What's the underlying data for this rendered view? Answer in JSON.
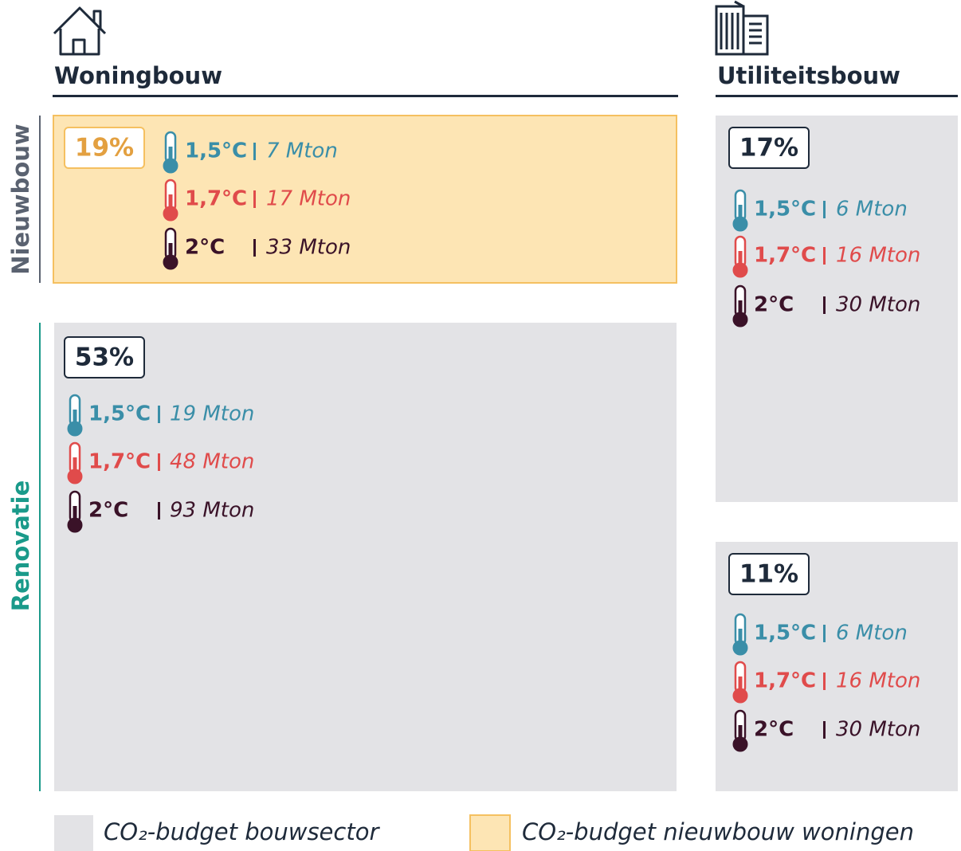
{
  "sections": {
    "housing": "Woningbouw",
    "utility": "Utiliteitsbouw"
  },
  "rows": {
    "new": "Nieuwbouw",
    "renovation": "Renovatie"
  },
  "boxes": [
    {
      "share": "19%",
      "scenarios": [
        {
          "temp": "1,5°C",
          "budget": "7 Mton"
        },
        {
          "temp": "1,7°C",
          "budget": "17 Mton"
        },
        {
          "temp": "2°C",
          "budget": "33 Mton"
        }
      ]
    },
    {
      "share": "53%",
      "scenarios": [
        {
          "temp": "1,5°C",
          "budget": "19 Mton"
        },
        {
          "temp": "1,7°C",
          "budget": "48 Mton"
        },
        {
          "temp": "2°C",
          "budget": "93 Mton"
        }
      ]
    },
    {
      "share": "17%",
      "scenarios": [
        {
          "temp": "1,5°C",
          "budget": "6 Mton"
        },
        {
          "temp": "1,7°C",
          "budget": "16 Mton"
        },
        {
          "temp": "2°C",
          "budget": "30 Mton"
        }
      ]
    },
    {
      "share": "11%",
      "scenarios": [
        {
          "temp": "1,5°C",
          "budget": "6 Mton"
        },
        {
          "temp": "1,7°C",
          "budget": "16 Mton"
        },
        {
          "temp": "2°C",
          "budget": "30 Mton"
        }
      ]
    }
  ],
  "legend": [
    "CO₂-budget bouwsector",
    "CO₂-budget nieuwbouw woningen"
  ]
}
